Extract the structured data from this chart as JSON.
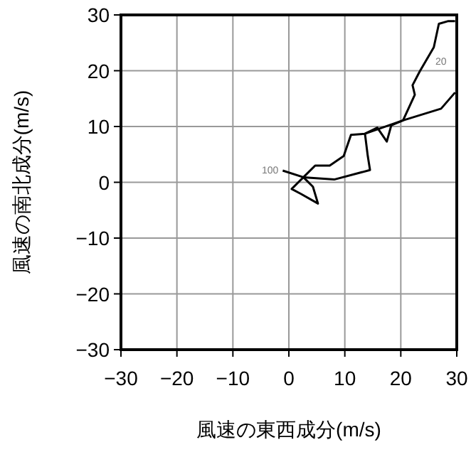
{
  "chart_data": {
    "type": "line",
    "xlabel": "風速の東西成分(m/s)",
    "ylabel": "風速の南北成分(m/s)",
    "xlim": [
      -30,
      30
    ],
    "ylim": [
      -30,
      30
    ],
    "xticks": [
      -30,
      -20,
      -10,
      0,
      10,
      20,
      30
    ],
    "yticks": [
      -30,
      -20,
      -10,
      0,
      10,
      20,
      30
    ],
    "grid": true,
    "marker": "none",
    "series": [
      {
        "color": "#000000",
        "x": [
          -1.1,
          2.6,
          0.5,
          2.2,
          5.2,
          4.3,
          2.6,
          4.7,
          7.3,
          9.8,
          11.1,
          13.6,
          15.8,
          17.5,
          18.3,
          20.4,
          22.5,
          22.1,
          23.4,
          25.9,
          26.8,
          28.5,
          29.7
        ],
        "values": [
          2.1,
          0.9,
          -1.2,
          -2.1,
          -3.8,
          -0.8,
          0.9,
          3.0,
          3.0,
          4.7,
          8.5,
          8.7,
          9.8,
          7.3,
          10.2,
          11.1,
          15.7,
          17.4,
          19.9,
          24.2,
          28.4,
          28.9,
          28.9
        ]
      },
      {
        "color": "#000000",
        "x": [
          2.6,
          8.1,
          14.5,
          14.1,
          13.6,
          20.4,
          27.2,
          29.7
        ],
        "values": [
          0.9,
          0.5,
          2.2,
          4.7,
          8.7,
          11.1,
          13.2,
          16.1
        ]
      }
    ],
    "annotations": [
      {
        "text": "100",
        "x": -1.1,
        "y": 2.1
      },
      {
        "text": "20",
        "x": 24.4,
        "y": 21.6
      }
    ]
  }
}
